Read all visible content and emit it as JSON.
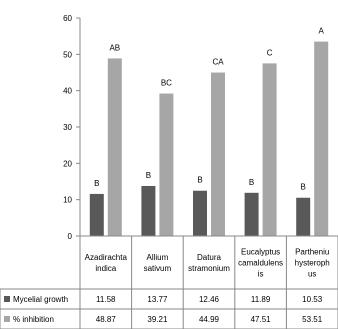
{
  "chart_data": {
    "type": "bar",
    "title": "",
    "xlabel": "",
    "ylabel": "",
    "ylim": [
      0,
      60
    ],
    "yticks": [
      "0",
      "10",
      "20",
      "30",
      "40",
      "50",
      "60"
    ],
    "grid": false,
    "legend": "in data table, left",
    "categories": [
      {
        "id": "azadirachta",
        "lines": [
          "Azadirachta",
          "indica"
        ]
      },
      {
        "id": "allium",
        "lines": [
          "Allium",
          "sativum"
        ]
      },
      {
        "id": "datura",
        "lines": [
          "Datura",
          "stramonium"
        ]
      },
      {
        "id": "eucalyptus",
        "lines": [
          "Eucalyptus",
          "camaldulens",
          "is"
        ]
      },
      {
        "id": "parthenium",
        "lines": [
          "Partheniu",
          "hysteroph",
          "us"
        ]
      }
    ],
    "series": [
      {
        "name": "Mycelial growth",
        "color": "#595959",
        "values": [
          11.58,
          13.77,
          12.46,
          11.89,
          10.53
        ],
        "value_text": [
          "11.58",
          "13.77",
          "12.46",
          "11.89",
          "10.53"
        ],
        "letters": [
          "B",
          "B",
          "B",
          "B",
          "B"
        ]
      },
      {
        "name": "% inhibition",
        "color": "#a6a6a6",
        "values": [
          48.87,
          39.21,
          44.99,
          47.51,
          53.51
        ],
        "value_text": [
          "48.87",
          "39.21",
          "44.99",
          "47.51",
          "53.51"
        ],
        "letters": [
          "AB",
          "BC",
          "CA",
          "C",
          "A"
        ]
      }
    ]
  }
}
